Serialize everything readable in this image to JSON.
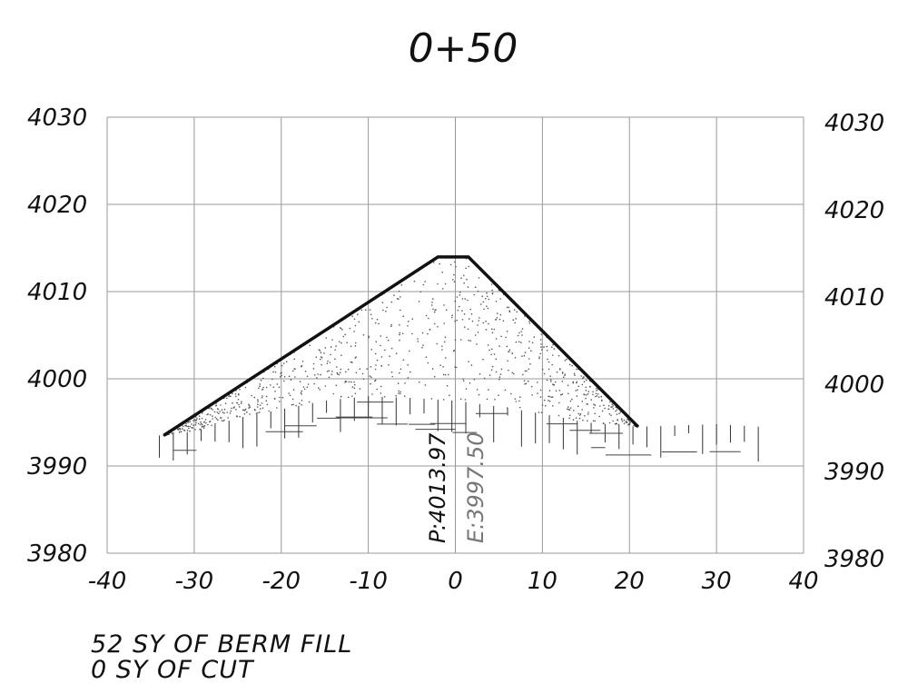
{
  "title": "0+50",
  "x_ticks": [
    "-40",
    "-30",
    "-20",
    "-10",
    "0",
    "10",
    "20",
    "30",
    "40"
  ],
  "y_ticks": [
    "3980",
    "3990",
    "4000",
    "4010",
    "4020",
    "4030"
  ],
  "x_range": [
    -40,
    40
  ],
  "y_range": [
    3980,
    4030
  ],
  "grid": true,
  "profile_label": "P:4013.97",
  "elevation_label": "E:3997.50",
  "design_profile": [
    [
      -33.5,
      3993.5
    ],
    [
      -2,
      4013.97
    ],
    [
      1.5,
      4013.97
    ],
    [
      21,
      3994.5
    ]
  ],
  "existing_ground": [
    [
      -33.5,
      3993.5
    ],
    [
      -30,
      3994
    ],
    [
      -25,
      3995.5
    ],
    [
      -20,
      3996.5
    ],
    [
      -15,
      3997.5
    ],
    [
      -10,
      3998
    ],
    [
      -5,
      3997.8
    ],
    [
      0,
      3997.5
    ],
    [
      5,
      3996.8
    ],
    [
      10,
      3996
    ],
    [
      15,
      3995
    ],
    [
      21,
      3994.5
    ],
    [
      30,
      3994.8
    ],
    [
      35,
      3994.5
    ]
  ],
  "summary": {
    "fill_line": "52 SY OF BERM FILL",
    "cut_line": "0 SY OF CUT"
  }
}
